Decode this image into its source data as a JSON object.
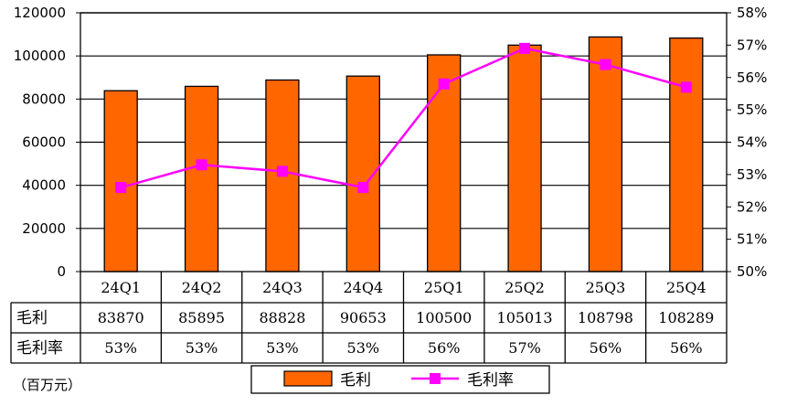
{
  "chart_data": {
    "type": "bar",
    "categories": [
      "24Q1",
      "24Q2",
      "24Q3",
      "24Q4",
      "25Q1",
      "25Q2",
      "25Q3",
      "25Q4"
    ],
    "series": [
      {
        "name": "毛利",
        "type": "bar",
        "axis": "left",
        "color": "#FF6600",
        "values": [
          83870,
          85895,
          88828,
          90653,
          100500,
          105013,
          108798,
          108289
        ]
      },
      {
        "name": "毛利率",
        "type": "line",
        "axis": "right",
        "color": "#FF00FF",
        "values": [
          52.6,
          53.3,
          53.1,
          52.6,
          55.8,
          56.9,
          56.4,
          55.7
        ]
      }
    ],
    "y_left": {
      "min": 0,
      "max": 120000,
      "step": 20000,
      "ticks": [
        "0",
        "20000",
        "40000",
        "60000",
        "80000",
        "100000",
        "120000"
      ]
    },
    "y_right": {
      "min": 50,
      "max": 58,
      "step": 1,
      "ticks": [
        "50%",
        "51%",
        "52%",
        "53%",
        "54%",
        "55%",
        "56%",
        "57%",
        "58%"
      ]
    },
    "grid": true,
    "legend_position": "bottom",
    "table": {
      "rows": [
        {
          "header": "毛利",
          "cells": [
            "83870",
            "85895",
            "88828",
            "90653",
            "100500",
            "105013",
            "108798",
            "108289"
          ]
        },
        {
          "header": "毛利率",
          "cells": [
            "53%",
            "53%",
            "53%",
            "53%",
            "56%",
            "57%",
            "56%",
            "56%"
          ]
        }
      ]
    },
    "unit_label": "（百万元）"
  }
}
